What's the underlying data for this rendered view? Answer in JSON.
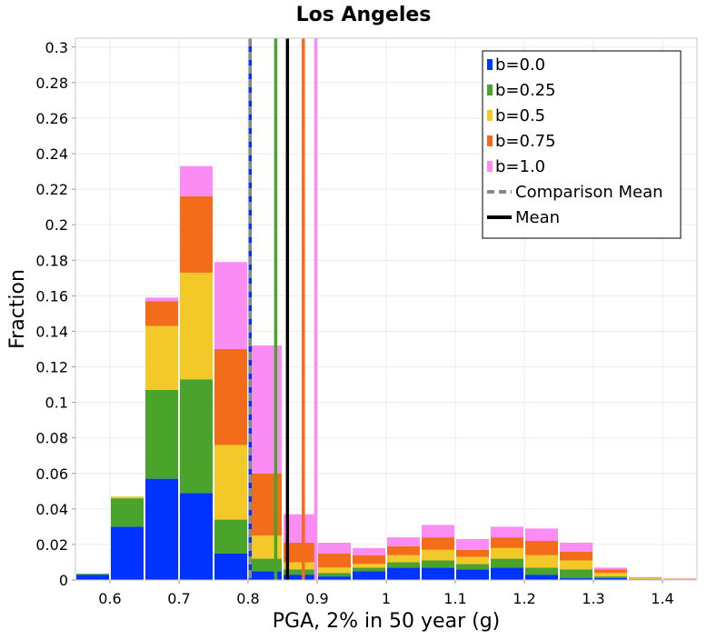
{
  "chart_data": {
    "type": "bar",
    "stacked": true,
    "title": "Los Angeles",
    "xlabel": "PGA, 2% in 50 year (g)",
    "ylabel": "Fraction",
    "xlim": [
      0.55,
      1.45
    ],
    "ylim": [
      0,
      0.305
    ],
    "x_ticks": [
      "0.6",
      "0.7",
      "0.8",
      "0.9",
      "1",
      "1.1",
      "1.2",
      "1.3",
      "1.4"
    ],
    "x_tick_values": [
      0.6,
      0.7,
      0.8,
      0.9,
      1.0,
      1.1,
      1.2,
      1.3,
      1.4
    ],
    "y_ticks": [
      "0",
      "0.02",
      "0.04",
      "0.06",
      "0.08",
      "0.1",
      "0.12",
      "0.14",
      "0.16",
      "0.18",
      "0.2",
      "0.22",
      "0.24",
      "0.26",
      "0.28",
      "0.3"
    ],
    "y_tick_values": [
      0,
      0.02,
      0.04,
      0.06,
      0.08,
      0.1,
      0.12,
      0.14,
      0.16,
      0.18,
      0.2,
      0.22,
      0.24,
      0.26,
      0.28,
      0.3
    ],
    "grid": true,
    "legend_position": "top-right",
    "bins": [
      0.575,
      0.625,
      0.675,
      0.725,
      0.775,
      0.825,
      0.875,
      0.925,
      0.975,
      1.025,
      1.075,
      1.125,
      1.175,
      1.225,
      1.275,
      1.325,
      1.375,
      1.425
    ],
    "series": [
      {
        "name": "b=0.0",
        "color": "#0033ff",
        "values": [
          0.003,
          0.03,
          0.057,
          0.049,
          0.015,
          0.005,
          0.003,
          0.002,
          0.005,
          0.007,
          0.007,
          0.006,
          0.007,
          0.003,
          0.001,
          0.001,
          0.0003,
          0.0002
        ]
      },
      {
        "name": "b=0.25",
        "color": "#4aa32a",
        "values": [
          0.0005,
          0.016,
          0.05,
          0.064,
          0.019,
          0.007,
          0.003,
          0.002,
          0.002,
          0.003,
          0.004,
          0.003,
          0.005,
          0.004,
          0.005,
          0.001,
          0.0003,
          0.0002
        ]
      },
      {
        "name": "b=0.5",
        "color": "#f2c928",
        "values": [
          0,
          0.001,
          0.036,
          0.06,
          0.042,
          0.013,
          0.004,
          0.003,
          0.002,
          0.004,
          0.006,
          0.004,
          0.006,
          0.007,
          0.005,
          0.002,
          0.0004,
          0.0002
        ]
      },
      {
        "name": "b=0.75",
        "color": "#f26c1a",
        "values": [
          0,
          0,
          0.014,
          0.043,
          0.054,
          0.035,
          0.011,
          0.008,
          0.005,
          0.005,
          0.007,
          0.004,
          0.006,
          0.008,
          0.005,
          0.002,
          0.0003,
          0.0002
        ]
      },
      {
        "name": "b=1.0",
        "color": "#fa8cf3",
        "values": [
          0,
          0,
          0.002,
          0.017,
          0.049,
          0.072,
          0.016,
          0.006,
          0.004,
          0.005,
          0.007,
          0.006,
          0.006,
          0.007,
          0.005,
          0.001,
          0.0002,
          0.0001
        ]
      }
    ],
    "vlines": [
      {
        "label": "b=0.0",
        "x": 0.803,
        "color": "#0033ff",
        "style": "solid",
        "legend": false
      },
      {
        "label": "Comparison Mean",
        "x": 0.803,
        "color": "#888888",
        "style": "dashed",
        "legend": true
      },
      {
        "label": "b=0.25",
        "x": 0.84,
        "color": "#4aa32a",
        "style": "solid",
        "legend": false
      },
      {
        "label": "Mean",
        "x": 0.857,
        "color": "#000000",
        "style": "solid",
        "legend": true
      },
      {
        "label": "b=0.75",
        "x": 0.88,
        "color": "#f26c1a",
        "style": "solid",
        "legend": false
      },
      {
        "label": "b=1.0",
        "x": 0.898,
        "color": "#fa8cf3",
        "style": "solid",
        "legend": false
      }
    ],
    "legend": [
      {
        "name": "b=0.0",
        "kind": "swatch",
        "color": "#0033ff"
      },
      {
        "name": "b=0.25",
        "kind": "swatch",
        "color": "#4aa32a"
      },
      {
        "name": "b=0.5",
        "kind": "swatch",
        "color": "#f2c928"
      },
      {
        "name": "b=0.75",
        "kind": "swatch",
        "color": "#f26c1a"
      },
      {
        "name": "b=1.0",
        "kind": "swatch",
        "color": "#fa8cf3"
      },
      {
        "name": "Comparison Mean",
        "kind": "dashed",
        "color": "#888888"
      },
      {
        "name": "Mean",
        "kind": "solid",
        "color": "#000000"
      }
    ]
  }
}
